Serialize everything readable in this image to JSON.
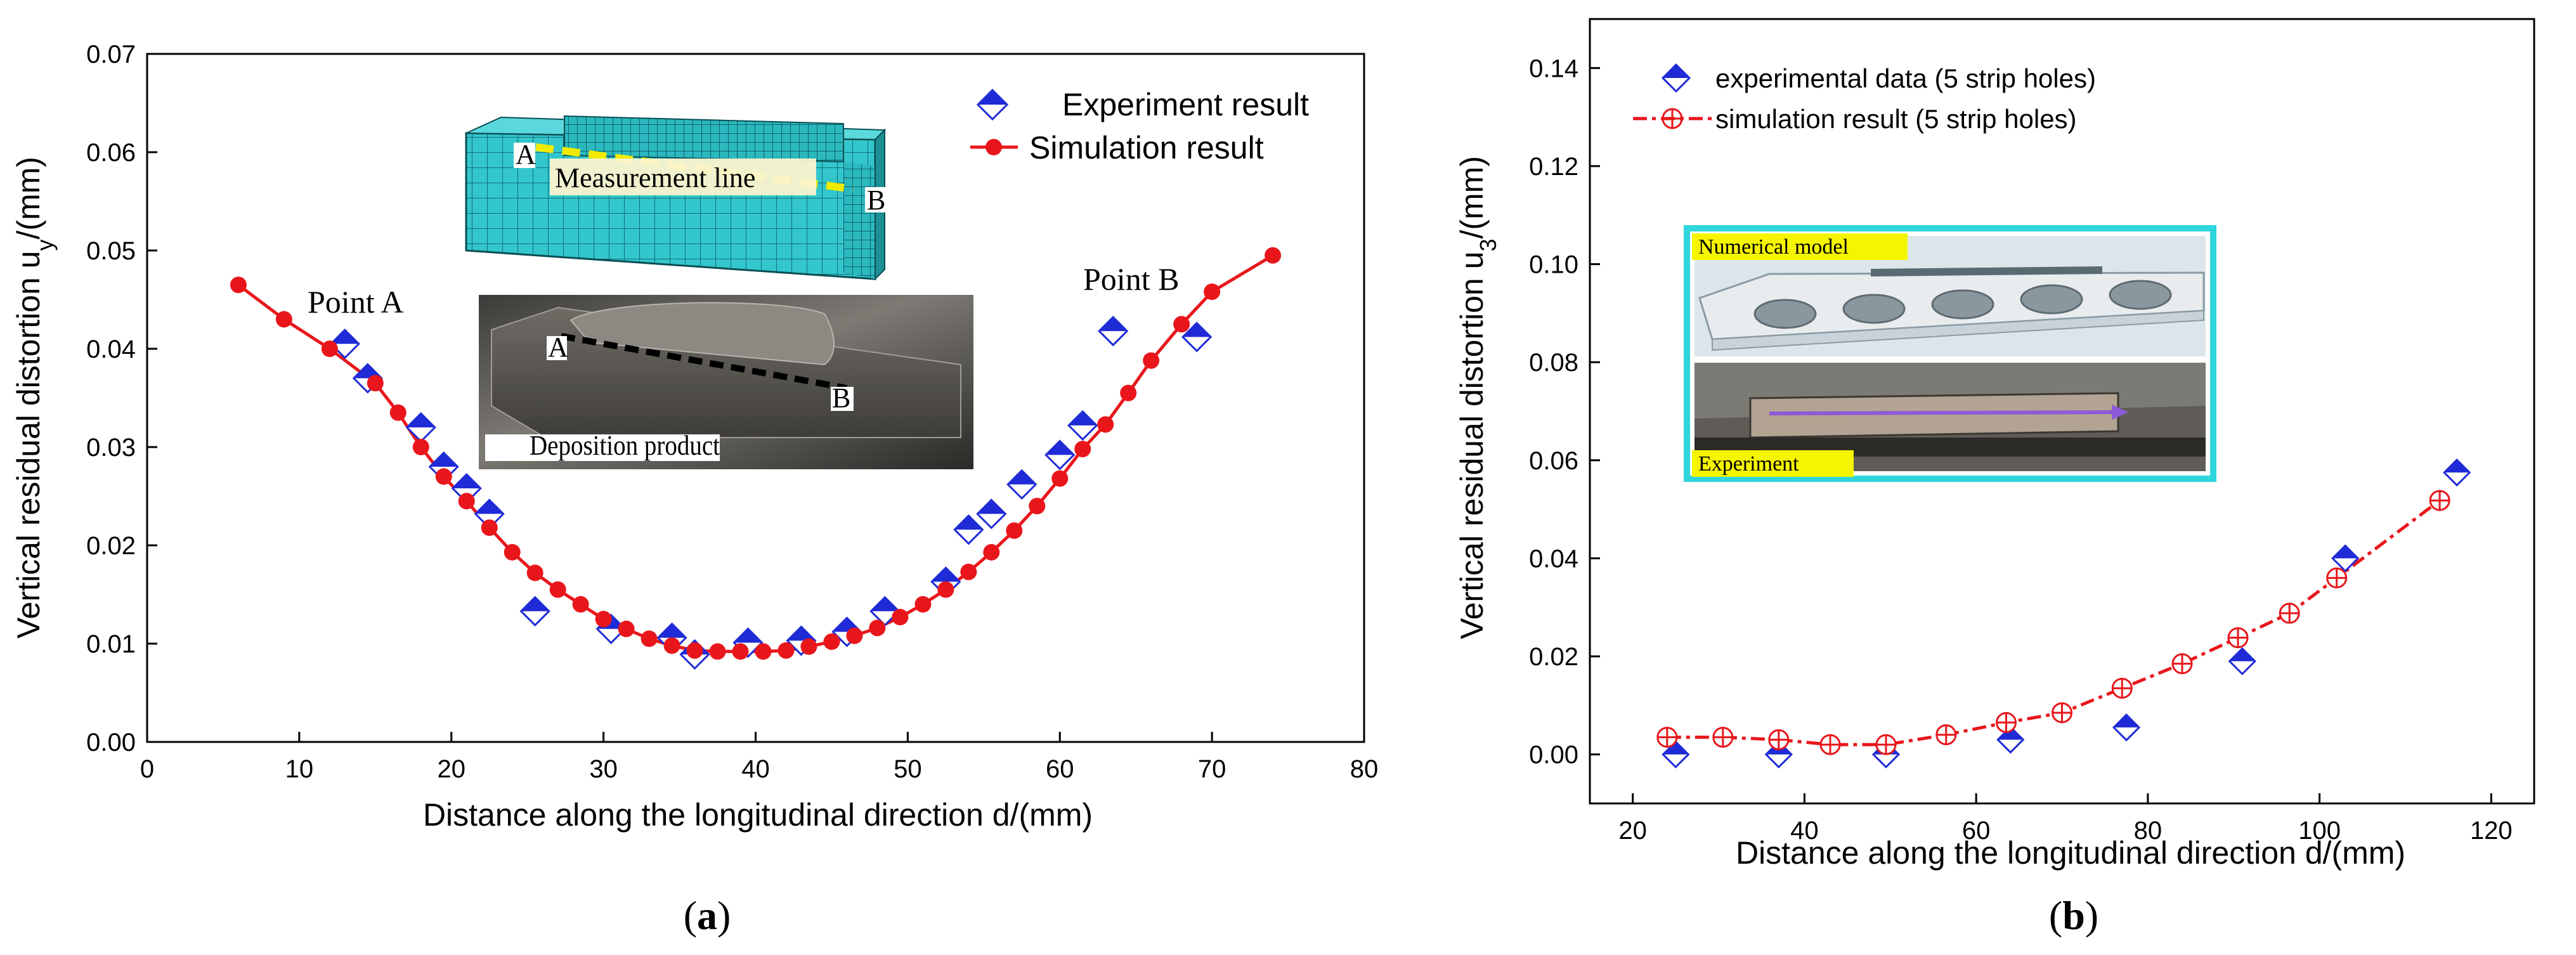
{
  "chart_data": [
    {
      "type": "scatter",
      "panel_label_open": "(",
      "panel_label_letter": "a",
      "panel_label_close": ")",
      "xlabel": "Distance along the longitudinal direction d/(mm)",
      "ylabel": "Vertical residual distortion u",
      "ylabel_sub": "y",
      "ylabel_tail": "/(mm)",
      "xlim": [
        0,
        80
      ],
      "ylim": [
        0.0,
        0.07
      ],
      "xticks": [
        "0",
        "10",
        "20",
        "30",
        "40",
        "50",
        "60",
        "70",
        "80"
      ],
      "yticks": [
        "0.00",
        "0.01",
        "0.02",
        "0.03",
        "0.04",
        "0.05",
        "0.06",
        "0.07"
      ],
      "legend_position": "top-right",
      "series": [
        {
          "name": "Experiment result",
          "marker": "diamond",
          "color": "#1f2bd6",
          "x": [
            13,
            14.5,
            18,
            19.5,
            21,
            22.5,
            25.5,
            30.5,
            34.5,
            36,
            39.5,
            43,
            46,
            48.5,
            52.5,
            54,
            55.5,
            57.5,
            60,
            61.5,
            63.5,
            69
          ],
          "y": [
            0.0405,
            0.037,
            0.032,
            0.028,
            0.0258,
            0.0232,
            0.0133,
            0.0115,
            0.0106,
            0.0089,
            0.0101,
            0.0103,
            0.0112,
            0.0133,
            0.0163,
            0.0216,
            0.0232,
            0.0262,
            0.0292,
            0.0322,
            0.0418,
            0.0412
          ]
        },
        {
          "name": "Simulation result",
          "marker": "filled-circle",
          "color": "#e8161b",
          "x": [
            6,
            9,
            12,
            15,
            16.5,
            18,
            19.5,
            21,
            22.5,
            24,
            25.5,
            27,
            28.5,
            30,
            31.5,
            33,
            34.5,
            36,
            37.5,
            39,
            40.5,
            42,
            43.5,
            45,
            46.5,
            48,
            49.5,
            51,
            52.5,
            54,
            55.5,
            57,
            58.5,
            60,
            61.5,
            63,
            64.5,
            66,
            68,
            70,
            74
          ],
          "y": [
            0.0465,
            0.043,
            0.04,
            0.0365,
            0.0335,
            0.03,
            0.027,
            0.0245,
            0.0218,
            0.0193,
            0.0172,
            0.0155,
            0.014,
            0.0125,
            0.0115,
            0.0105,
            0.0098,
            0.0093,
            0.0092,
            0.0092,
            0.0092,
            0.0093,
            0.0097,
            0.0102,
            0.0108,
            0.0116,
            0.0127,
            0.014,
            0.0155,
            0.0173,
            0.0193,
            0.0215,
            0.024,
            0.0268,
            0.0298,
            0.0323,
            0.0355,
            0.0388,
            0.0425,
            0.0458,
            0.0495
          ]
        }
      ],
      "annotations": {
        "point_a": "Point A",
        "point_b": "Point B",
        "inset_top": {
          "label": "Measurement line",
          "marker_a": "A",
          "marker_b": "B",
          "mesh_color": "#2ec4c8",
          "line_color": "#e5e000"
        },
        "inset_bottom": {
          "label": "Deposition product",
          "marker_a": "A",
          "marker_b": "B"
        }
      }
    },
    {
      "type": "scatter",
      "panel_label_open": "(",
      "panel_label_letter": "b",
      "panel_label_close": ")",
      "xlabel": "Distance along the longitudinal direction d/(mm)",
      "ylabel": "Vertical residual distortion u",
      "ylabel_sub": "3",
      "ylabel_tail": "/(mm)",
      "xlim": [
        15,
        125
      ],
      "ylim": [
        -0.01,
        0.15
      ],
      "xticks": [
        "20",
        "40",
        "60",
        "80",
        "100",
        "120"
      ],
      "yticks": [
        "0.00",
        "0.02",
        "0.04",
        "0.06",
        "0.08",
        "0.10",
        "0.12",
        "0.14"
      ],
      "legend_position": "top-left",
      "series": [
        {
          "name": "experimental data (5 strip holes)",
          "marker": "diamond",
          "color": "#1f2bd6",
          "x": [
            25,
            37,
            49.5,
            64,
            77.5,
            91,
            103,
            116
          ],
          "y": [
            0.0,
            0.0,
            0.0,
            0.003,
            0.0055,
            0.019,
            0.04,
            0.0575
          ]
        },
        {
          "name": "simulation result (5 strip holes)",
          "marker": "circle-cross",
          "line": "dash-dot",
          "color": "#e8161b",
          "x": [
            24,
            30.5,
            37,
            43,
            49.5,
            56.5,
            63.5,
            70,
            77,
            84,
            90.5,
            96.5,
            102,
            114
          ],
          "y": [
            0.0035,
            0.0035,
            0.003,
            0.002,
            0.002,
            0.004,
            0.0065,
            0.0085,
            0.0135,
            0.0185,
            0.0238,
            0.0288,
            0.036,
            0.0518
          ]
        }
      ],
      "annotations": {
        "inset_top": "Numerical model",
        "inset_bottom": "Experiment",
        "inset_border_color": "#2fd6dc",
        "tag_color": "#f5f500"
      }
    }
  ]
}
